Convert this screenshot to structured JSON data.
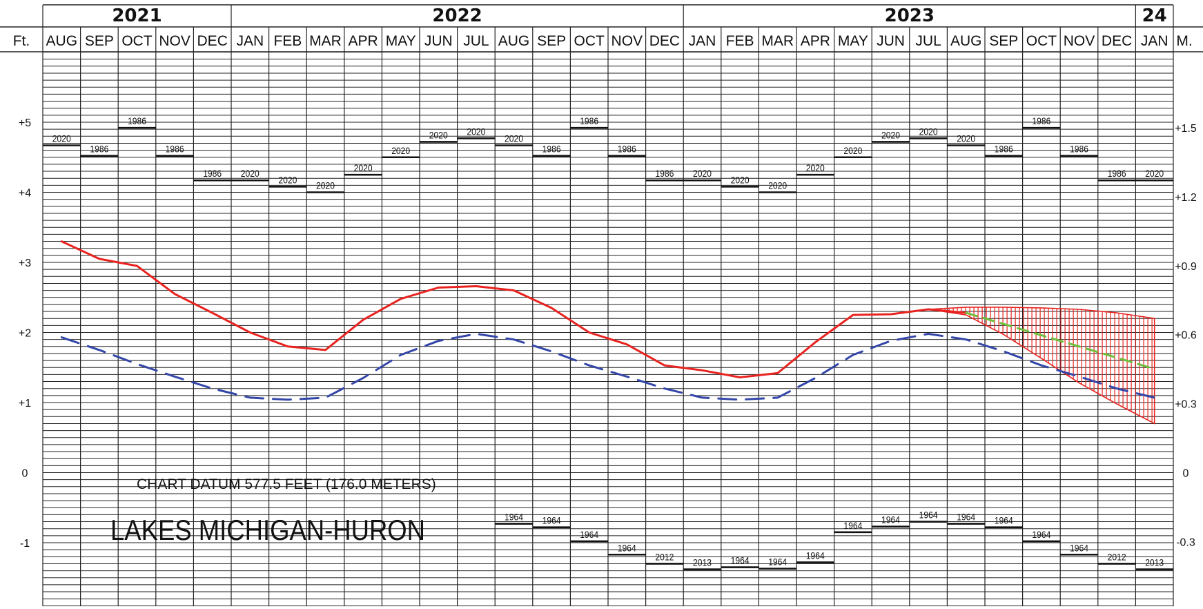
{
  "chart_data": {
    "type": "line",
    "title": "LAKES MICHIGAN-HURON",
    "datum_note": "CHART DATUM 577.5 FEET (176.0 METERS)",
    "left_unit": "Ft.",
    "right_unit": "M.",
    "years": [
      {
        "label": "2021",
        "span": [
          0,
          5
        ]
      },
      {
        "label": "2022",
        "span": [
          5,
          17
        ]
      },
      {
        "label": "2023",
        "span": [
          17,
          29
        ]
      },
      {
        "label": "24",
        "span": [
          29,
          30
        ]
      }
    ],
    "months": [
      "AUG",
      "SEP",
      "OCT",
      "NOV",
      "DEC",
      "JAN",
      "FEB",
      "MAR",
      "APR",
      "MAY",
      "JUN",
      "JUL",
      "AUG",
      "SEP",
      "OCT",
      "NOV",
      "DEC",
      "JAN",
      "FEB",
      "MAR",
      "APR",
      "MAY",
      "JUN",
      "JUL",
      "AUG",
      "SEP",
      "OCT",
      "NOV",
      "DEC",
      "JAN"
    ],
    "ylim": [
      -2.0,
      6.6
    ],
    "y_ticks_ft": [
      {
        "value": 5,
        "label": "+5"
      },
      {
        "value": 4,
        "label": "+4"
      },
      {
        "value": 3,
        "label": "+3"
      },
      {
        "value": 2,
        "label": "+2"
      },
      {
        "value": 1,
        "label": "+1"
      },
      {
        "value": 0,
        "label": "0"
      },
      {
        "value": -1,
        "label": "-1"
      }
    ],
    "y_ticks_m": [
      {
        "value": 1.5,
        "label": "+1.5"
      },
      {
        "value": 1.2,
        "label": "+1.2"
      },
      {
        "value": 0.9,
        "label": "+0.9"
      },
      {
        "value": 0.6,
        "label": "+0.6"
      },
      {
        "value": 0.3,
        "label": "+0.3"
      },
      {
        "value": 0,
        "label": "0"
      },
      {
        "value": -0.3,
        "label": "-0.3"
      }
    ],
    "series": [
      {
        "role": "recorded",
        "style": "solid",
        "color": "#e8231f",
        "points": [
          [
            0.5,
            3.3
          ],
          [
            1.5,
            3.05
          ],
          [
            2.5,
            2.95
          ],
          [
            3.5,
            2.55
          ],
          [
            4.5,
            2.28
          ],
          [
            5.5,
            2.0
          ],
          [
            6.5,
            1.8
          ],
          [
            7.5,
            1.75
          ],
          [
            8.5,
            2.18
          ],
          [
            9.5,
            2.48
          ],
          [
            10.5,
            2.64
          ],
          [
            11.5,
            2.66
          ],
          [
            12.5,
            2.6
          ],
          [
            13.5,
            2.35
          ],
          [
            14.5,
            2.0
          ],
          [
            15.5,
            1.83
          ],
          [
            16.5,
            1.53
          ],
          [
            17.5,
            1.46
          ],
          [
            18.5,
            1.36
          ],
          [
            19.5,
            1.42
          ],
          [
            20.5,
            1.86
          ],
          [
            21.5,
            2.25
          ],
          [
            22.5,
            2.26
          ],
          [
            23.5,
            2.33
          ],
          [
            24.5,
            2.28
          ]
        ]
      },
      {
        "role": "long-term average",
        "style": "dashed",
        "color": "#3346a8",
        "points": [
          [
            0.5,
            1.93
          ],
          [
            1.5,
            1.75
          ],
          [
            2.5,
            1.55
          ],
          [
            3.5,
            1.37
          ],
          [
            4.5,
            1.2
          ],
          [
            5.5,
            1.07
          ],
          [
            6.5,
            1.04
          ],
          [
            7.5,
            1.07
          ],
          [
            8.5,
            1.35
          ],
          [
            9.5,
            1.68
          ],
          [
            10.5,
            1.88
          ],
          [
            11.5,
            1.98
          ],
          [
            12.5,
            1.9
          ],
          [
            13.5,
            1.73
          ],
          [
            14.5,
            1.53
          ],
          [
            15.5,
            1.37
          ],
          [
            16.5,
            1.2
          ],
          [
            17.5,
            1.07
          ],
          [
            18.5,
            1.04
          ],
          [
            19.5,
            1.07
          ],
          [
            20.5,
            1.35
          ],
          [
            21.5,
            1.68
          ],
          [
            22.5,
            1.88
          ],
          [
            23.5,
            1.98
          ],
          [
            24.5,
            1.9
          ],
          [
            25.5,
            1.73
          ],
          [
            26.5,
            1.53
          ],
          [
            27.5,
            1.37
          ],
          [
            28.5,
            1.2
          ],
          [
            29.5,
            1.07
          ]
        ]
      },
      {
        "role": "most probable forecast",
        "style": "dashed",
        "color": "#6cbf3a",
        "points": [
          [
            24.5,
            2.28
          ],
          [
            25.5,
            2.12
          ],
          [
            26.5,
            1.96
          ],
          [
            27.5,
            1.8
          ],
          [
            28.5,
            1.64
          ],
          [
            29.5,
            1.48
          ]
        ]
      }
    ],
    "forecast_band": {
      "color": "#e8231f",
      "upper": [
        [
          23.5,
          2.33
        ],
        [
          24.5,
          2.36
        ],
        [
          25.5,
          2.36
        ],
        [
          26.5,
          2.35
        ],
        [
          27.5,
          2.33
        ],
        [
          28.5,
          2.28
        ],
        [
          29.5,
          2.2
        ]
      ],
      "lower": [
        [
          23.5,
          2.33
        ],
        [
          24.5,
          2.25
        ],
        [
          25.5,
          1.97
        ],
        [
          26.5,
          1.63
        ],
        [
          27.5,
          1.28
        ],
        [
          28.5,
          0.98
        ],
        [
          29.5,
          0.7
        ]
      ]
    },
    "record_highs": [
      {
        "value": 4.67,
        "year": "2020"
      },
      {
        "value": 4.52,
        "year": "1986"
      },
      {
        "value": 4.92,
        "year": "1986"
      },
      {
        "value": 4.52,
        "year": "1986"
      },
      {
        "value": 4.17,
        "year": "1986"
      },
      {
        "value": 4.17,
        "year": "2020"
      },
      {
        "value": 4.08,
        "year": "2020"
      },
      {
        "value": 4.0,
        "year": "2020"
      },
      {
        "value": 4.25,
        "year": "2020"
      },
      {
        "value": 4.5,
        "year": "2020"
      },
      {
        "value": 4.72,
        "year": "2020"
      },
      {
        "value": 4.77,
        "year": "2020"
      },
      {
        "value": 4.67,
        "year": "2020"
      },
      {
        "value": 4.52,
        "year": "1986"
      },
      {
        "value": 4.92,
        "year": "1986"
      },
      {
        "value": 4.52,
        "year": "1986"
      },
      {
        "value": 4.17,
        "year": "1986"
      },
      {
        "value": 4.17,
        "year": "2020"
      },
      {
        "value": 4.08,
        "year": "2020"
      },
      {
        "value": 4.0,
        "year": "2020"
      },
      {
        "value": 4.25,
        "year": "2020"
      },
      {
        "value": 4.5,
        "year": "2020"
      },
      {
        "value": 4.72,
        "year": "2020"
      },
      {
        "value": 4.77,
        "year": "2020"
      },
      {
        "value": 4.67,
        "year": "2020"
      },
      {
        "value": 4.52,
        "year": "1986"
      },
      {
        "value": 4.92,
        "year": "1986"
      },
      {
        "value": 4.52,
        "year": "1986"
      },
      {
        "value": 4.17,
        "year": "1986"
      },
      {
        "value": 4.17,
        "year": "2020"
      }
    ],
    "record_lows": [
      {
        "month_index": 12,
        "value": -0.73,
        "year": "1964"
      },
      {
        "month_index": 13,
        "value": -0.78,
        "year": "1964"
      },
      {
        "month_index": 14,
        "value": -0.98,
        "year": "1964"
      },
      {
        "month_index": 15,
        "value": -1.17,
        "year": "1964"
      },
      {
        "month_index": 16,
        "value": -1.3,
        "year": "2012"
      },
      {
        "month_index": 17,
        "value": -1.38,
        "year": "2013"
      },
      {
        "month_index": 18,
        "value": -1.35,
        "year": "1964"
      },
      {
        "month_index": 19,
        "value": -1.37,
        "year": "1964"
      },
      {
        "month_index": 20,
        "value": -1.28,
        "year": "1964"
      },
      {
        "month_index": 21,
        "value": -0.85,
        "year": "1964"
      },
      {
        "month_index": 22,
        "value": -0.77,
        "year": "1964"
      },
      {
        "month_index": 23,
        "value": -0.7,
        "year": "1964"
      },
      {
        "month_index": 24,
        "value": -0.73,
        "year": "1964"
      },
      {
        "month_index": 25,
        "value": -0.78,
        "year": "1964"
      },
      {
        "month_index": 26,
        "value": -0.98,
        "year": "1964"
      },
      {
        "month_index": 27,
        "value": -1.17,
        "year": "1964"
      },
      {
        "month_index": 28,
        "value": -1.3,
        "year": "2012"
      },
      {
        "month_index": 29,
        "value": -1.38,
        "year": "2013"
      }
    ]
  }
}
